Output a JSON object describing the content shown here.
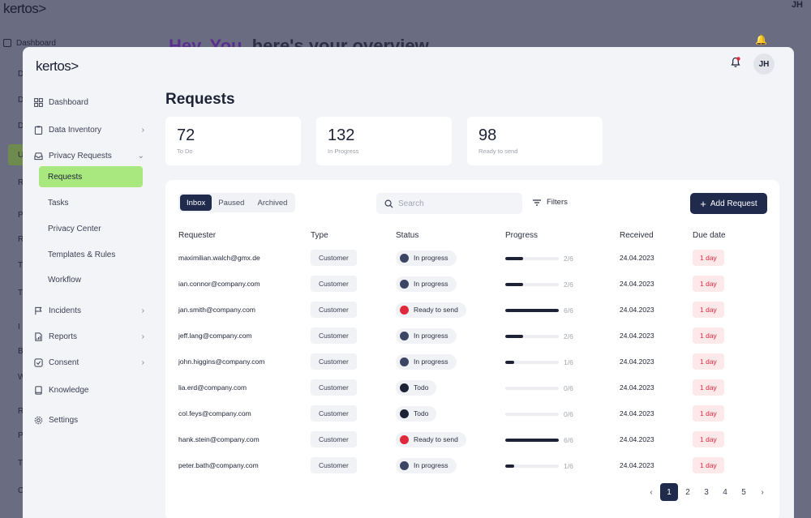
{
  "background": {
    "logo": "kertos>",
    "avatar": "JH",
    "nav_first": "Dashboard",
    "greeting_pre": "Hey, You,",
    "greeting_post": " here's your overview",
    "letters": [
      "D",
      "D",
      "D",
      "U",
      "R",
      "P",
      "R",
      "T",
      "T",
      "I",
      "B",
      "W",
      "R",
      "P",
      "T",
      "C"
    ]
  },
  "app": {
    "logo": "kertos>",
    "avatar": "JH",
    "accent_color": "#a8e87e",
    "primary_color": "#1f2a4d"
  },
  "sidebar": {
    "items": [
      {
        "label": "Dashboard",
        "icon": "grid-icon",
        "chevron": false
      },
      {
        "label": "Data Inventory",
        "icon": "clipboard-icon",
        "chevron": true
      },
      {
        "label": "Privacy Requests",
        "icon": "inbox-icon",
        "chevron": true,
        "expanded": true
      },
      {
        "label": "Incidents",
        "icon": "flag-icon",
        "chevron": true
      },
      {
        "label": "Reports",
        "icon": "report-icon",
        "chevron": true
      },
      {
        "label": "Consent",
        "icon": "check-square-icon",
        "chevron": true
      },
      {
        "label": "Knowledge",
        "icon": "book-icon",
        "chevron": false
      },
      {
        "label": "Settings",
        "icon": "gear-icon",
        "chevron": false
      }
    ],
    "sub_items": [
      "Requests",
      "Tasks",
      "Privacy Center",
      "Templates & Rules",
      "Workflow"
    ]
  },
  "main": {
    "title": "Requests",
    "stats": [
      {
        "value": "72",
        "label": "To Do"
      },
      {
        "value": "132",
        "label": "In Progress"
      },
      {
        "value": "98",
        "label": "Ready to send"
      }
    ],
    "tabs": [
      "Inbox",
      "Paused",
      "Archived"
    ],
    "search_placeholder": "Search",
    "filters_label": "Filters",
    "add_label": "Add Request",
    "columns": [
      "Requester",
      "Type",
      "Status",
      "Progress",
      "Received",
      "Due date"
    ],
    "rows": [
      {
        "requester": "maximilian.walch@gmx.de",
        "type": "Customer",
        "status": "In progress",
        "status_color": "#3d4566",
        "progress": "2/6",
        "fraction": 0.33,
        "received": "24.04.2023",
        "due": "1 day"
      },
      {
        "requester": "ian.connor@company.com",
        "type": "Customer",
        "status": "In progress",
        "status_color": "#3d4566",
        "progress": "2/6",
        "fraction": 0.33,
        "received": "24.04.2023",
        "due": "1 day"
      },
      {
        "requester": "jan.smith@company.com",
        "type": "Customer",
        "status": "Ready to send",
        "status_color": "#e0283c",
        "progress": "6/6",
        "fraction": 1.0,
        "received": "24.04.2023",
        "due": "1 day"
      },
      {
        "requester": "jeff.lang@company.com",
        "type": "Customer",
        "status": "In progress",
        "status_color": "#3d4566",
        "progress": "2/6",
        "fraction": 0.33,
        "received": "24.04.2023",
        "due": "1 day"
      },
      {
        "requester": "john.higgins@company.com",
        "type": "Customer",
        "status": "In progress",
        "status_color": "#3d4566",
        "progress": "1/6",
        "fraction": 0.17,
        "received": "24.04.2023",
        "due": "1 day"
      },
      {
        "requester": "lia.erd@company.com",
        "type": "Customer",
        "status": "Todo",
        "status_color": "#1d2236",
        "progress": "0/6",
        "fraction": 0,
        "received": "24.04.2023",
        "due": "1 day"
      },
      {
        "requester": "col.feys@company.com",
        "type": "Customer",
        "status": "Todo",
        "status_color": "#1d2236",
        "progress": "0/6",
        "fraction": 0,
        "received": "24.04.2023",
        "due": "1 day"
      },
      {
        "requester": "hank.stein@company.com",
        "type": "Customer",
        "status": "Ready to send",
        "status_color": "#e0283c",
        "progress": "6/6",
        "fraction": 1.0,
        "received": "24.04.2023",
        "due": "1 day"
      },
      {
        "requester": "peter.bath@company.com",
        "type": "Customer",
        "status": "In progress",
        "status_color": "#3d4566",
        "progress": "1/6",
        "fraction": 0.17,
        "received": "24.04.2023",
        "due": "1 day"
      }
    ],
    "pagination": {
      "pages": [
        "1",
        "2",
        "3",
        "4",
        "5"
      ],
      "current": "1",
      "prev": "‹",
      "next": "›"
    }
  }
}
